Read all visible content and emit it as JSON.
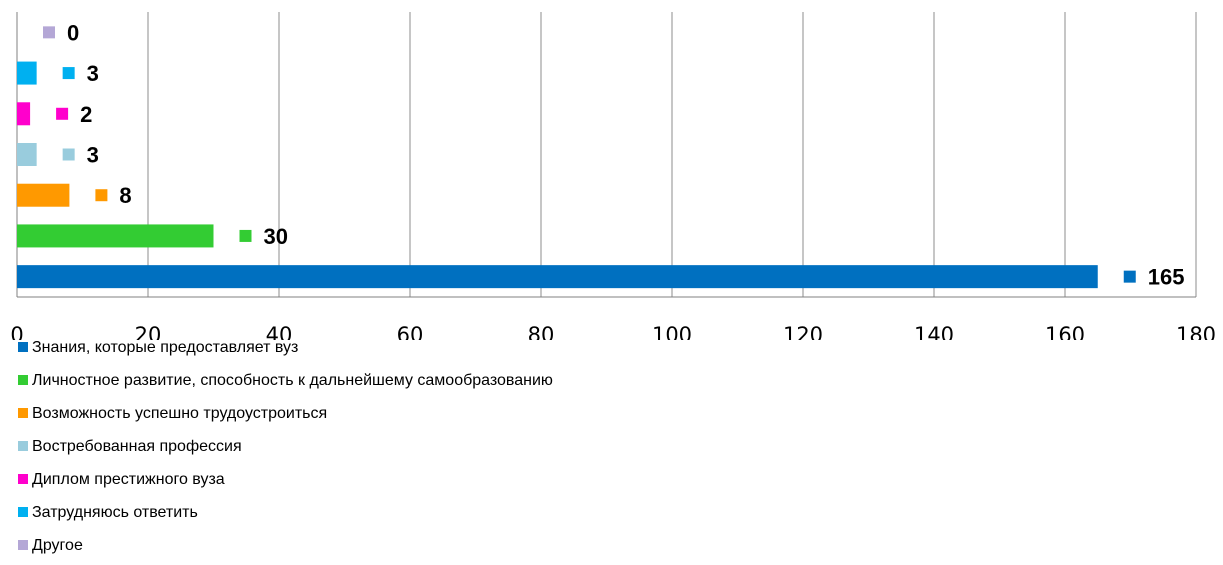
{
  "chart_data": {
    "type": "bar",
    "orientation": "horizontal",
    "categories": [
      "Знания, которые предоставляет вуз",
      "Личностное развитие, способность к дальнейшему самообразованию",
      "Возможность успешно трудоустроиться",
      "Востребованная профессия",
      "Диплом престижного вуза",
      "Затрудняюсь ответить",
      "Другое"
    ],
    "values": [
      165,
      30,
      8,
      3,
      2,
      3,
      0
    ],
    "colors": [
      "#0070C0",
      "#33CC33",
      "#FF9900",
      "#99CCDD",
      "#FF00CC",
      "#00B0F0",
      "#B4A7D6"
    ],
    "xlim": [
      0,
      180
    ],
    "xticks": [
      "0",
      "20",
      "40",
      "60",
      "80",
      "100",
      "120",
      "140",
      "160",
      "180"
    ],
    "grid": true,
    "legend_position": "bottom",
    "title": "",
    "xlabel": "",
    "ylabel": ""
  }
}
